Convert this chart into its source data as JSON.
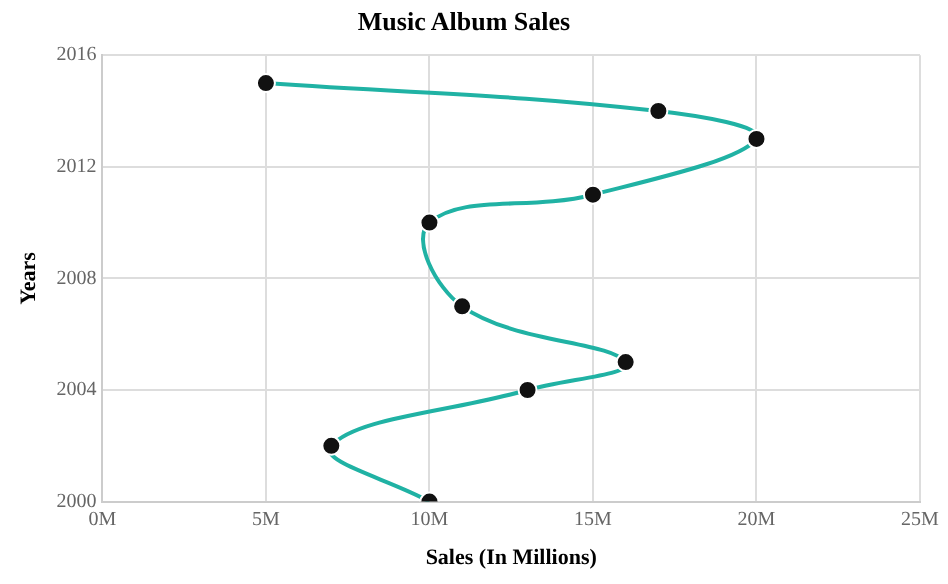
{
  "chart_data": {
    "type": "line",
    "title": "Music Album Sales",
    "xlabel": "Sales (In Millions)",
    "ylabel": "Years",
    "x": [
      10,
      7,
      13,
      16,
      11,
      10,
      15,
      20,
      17,
      5
    ],
    "series": [
      {
        "color": "#20b2a4",
        "values": [
          2000,
          2002,
          2004,
          2005,
          2007,
          2010,
          2011,
          2013,
          2014,
          2015
        ]
      }
    ],
    "xlim": [
      0,
      25
    ],
    "xticks": [
      {
        "value": 0,
        "label": "0M"
      },
      {
        "value": 5,
        "label": "5M"
      },
      {
        "value": 10,
        "label": "10M"
      },
      {
        "value": 15,
        "label": "15M"
      },
      {
        "value": 20,
        "label": "20M"
      },
      {
        "value": 25,
        "label": "25M"
      }
    ],
    "ylim": [
      2000,
      2016
    ],
    "yticks": [
      2000,
      2004,
      2008,
      2012,
      2016
    ],
    "grid": true,
    "legend": false,
    "marker": "circle",
    "line_style": "solid"
  }
}
